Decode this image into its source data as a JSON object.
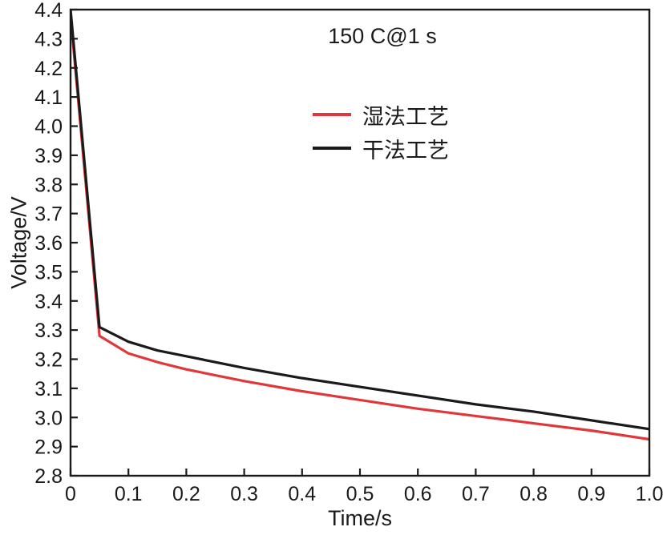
{
  "chart_data": {
    "type": "line",
    "title": "150 C@1 s",
    "xlabel": "Time/s",
    "ylabel": "Voltage/V",
    "xlim": [
      0,
      1.0
    ],
    "ylim": [
      2.8,
      4.4
    ],
    "grid": false,
    "legend_position": "upper-center",
    "x_ticks": [
      "0",
      "0.1",
      "0.2",
      "0.3",
      "0.4",
      "0.5",
      "0.6",
      "0.7",
      "0.8",
      "0.9",
      "1.0"
    ],
    "y_ticks": [
      "2.8",
      "2.9",
      "3.0",
      "3.1",
      "3.2",
      "3.3",
      "3.4",
      "3.5",
      "3.6",
      "3.7",
      "3.8",
      "3.9",
      "4.0",
      "4.1",
      "4.2",
      "4.3",
      "4.4"
    ],
    "x": [
      0,
      0.05,
      0.1,
      0.15,
      0.2,
      0.3,
      0.4,
      0.5,
      0.6,
      0.7,
      0.8,
      0.9,
      1.0
    ],
    "series": [
      {
        "name": "湿法工艺",
        "color": "#e0383a",
        "values": [
          4.38,
          3.28,
          3.22,
          3.19,
          3.165,
          3.125,
          3.09,
          3.06,
          3.03,
          3.005,
          2.98,
          2.955,
          2.925
        ]
      },
      {
        "name": "干法工艺",
        "color": "#1a1a1a",
        "values": [
          4.4,
          3.31,
          3.26,
          3.23,
          3.21,
          3.17,
          3.135,
          3.105,
          3.075,
          3.045,
          3.02,
          2.99,
          2.96
        ]
      }
    ]
  }
}
